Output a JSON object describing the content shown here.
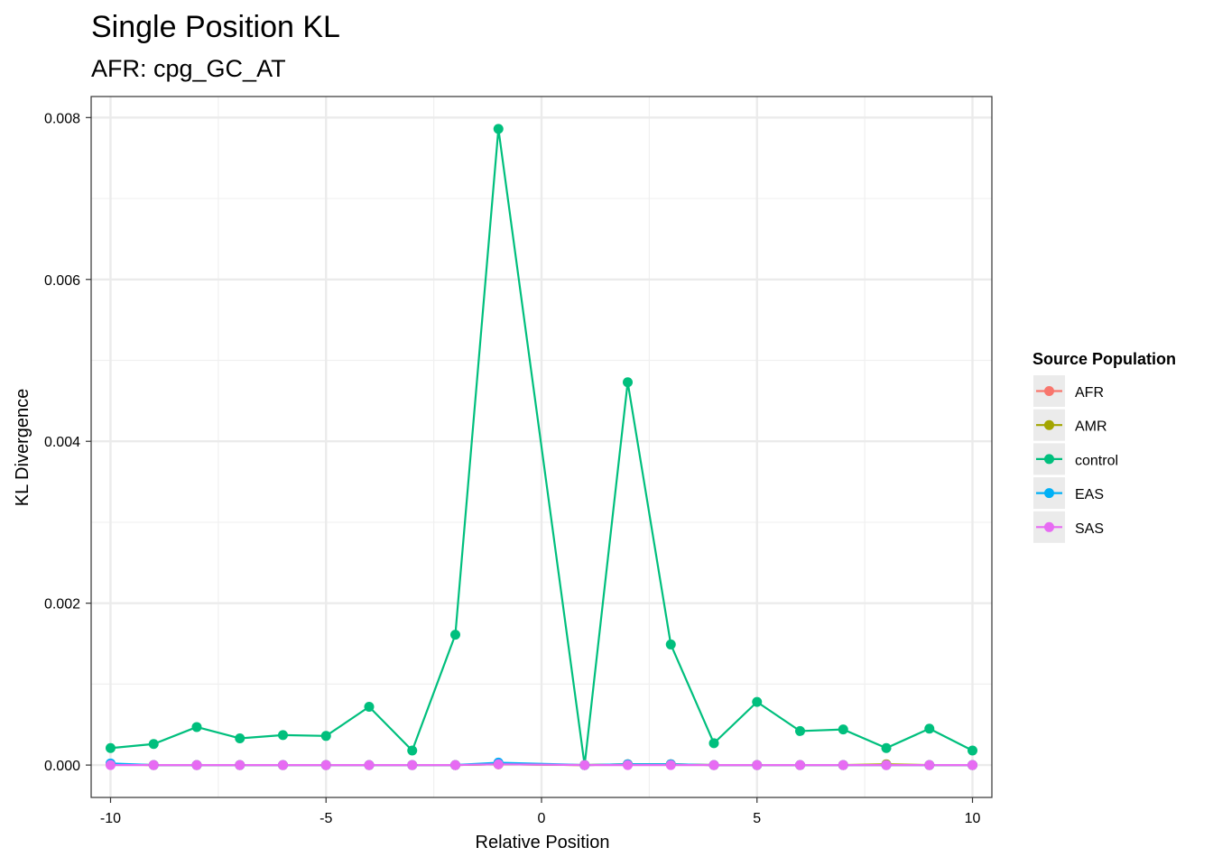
{
  "chart_data": {
    "type": "line",
    "title": "Single Position KL",
    "subtitle": "AFR: cpg_GC_AT",
    "xlabel": "Relative Position",
    "ylabel": "KL Divergence",
    "xlim": [
      -10.45,
      10.45
    ],
    "ylim": [
      -0.0004,
      0.00826
    ],
    "x_ticks": [
      -10,
      -5,
      0,
      5,
      10
    ],
    "x_tick_labels": [
      "-10",
      "-5",
      "0",
      "5",
      "10"
    ],
    "y_ticks": [
      0,
      0.002,
      0.004,
      0.006,
      0.008
    ],
    "y_tick_labels": [
      "0.000",
      "0.002",
      "0.004",
      "0.006",
      "0.008"
    ],
    "grid": true,
    "legend": {
      "title": "Source Population",
      "position": "right"
    },
    "x": [
      -10,
      -9,
      -8,
      -7,
      -6,
      -5,
      -4,
      -3,
      -2,
      -1,
      1,
      2,
      3,
      4,
      5,
      6,
      7,
      8,
      9,
      10
    ],
    "series": [
      {
        "name": "AFR",
        "color": "#F8766D",
        "values": [
          1e-05,
          0,
          0,
          0,
          0,
          0,
          0,
          0,
          0,
          1e-05,
          0,
          1e-05,
          1e-05,
          0,
          0,
          0,
          0,
          0,
          0,
          0
        ]
      },
      {
        "name": "AMR",
        "color": "#A3A500",
        "values": [
          1e-05,
          0,
          0,
          0,
          0,
          0,
          0,
          0,
          0,
          1e-05,
          0,
          1e-05,
          1e-05,
          0,
          0,
          0,
          0,
          1e-05,
          0,
          0
        ]
      },
      {
        "name": "control",
        "color": "#00BF7D",
        "values": [
          0.00021,
          0.00026,
          0.00047,
          0.00033,
          0.00037,
          0.00036,
          0.00072,
          0.00018,
          0.00161,
          0.00786,
          0.0,
          0.00473,
          0.00149,
          0.00027,
          0.00078,
          0.00042,
          0.00044,
          0.00021,
          0.00045,
          0.00018
        ]
      },
      {
        "name": "EAS",
        "color": "#00B0F6",
        "values": [
          2e-05,
          0,
          0,
          0,
          0,
          0,
          0,
          0,
          0,
          3e-05,
          0,
          1e-05,
          1e-05,
          0,
          0,
          0,
          0,
          0,
          0,
          0
        ]
      },
      {
        "name": "SAS",
        "color": "#E76BF3",
        "values": [
          0,
          0,
          0,
          0,
          0,
          0,
          0,
          0,
          0,
          1e-05,
          0,
          0,
          0,
          0,
          0,
          0,
          0,
          0,
          0,
          0
        ]
      }
    ]
  }
}
